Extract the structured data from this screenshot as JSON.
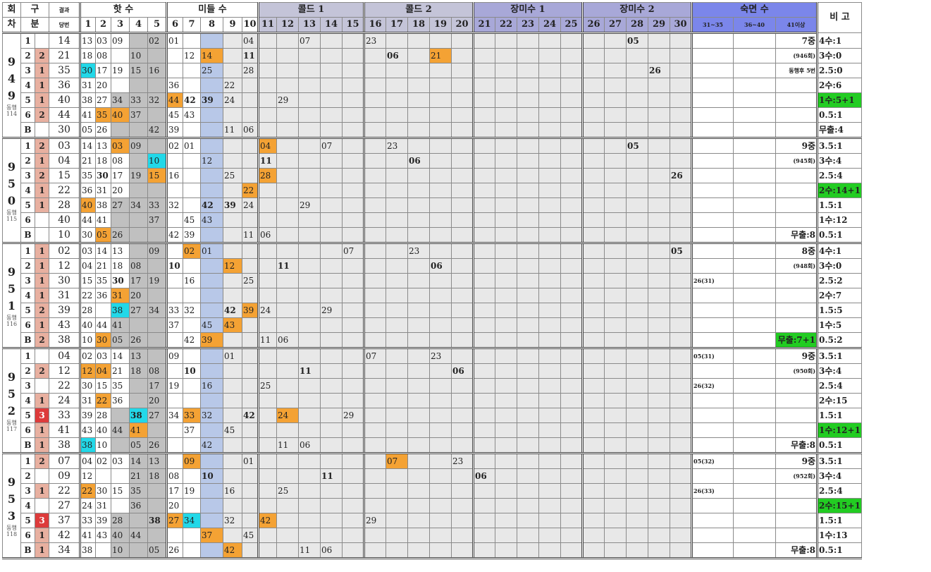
{
  "header": {
    "round": [
      "회",
      "차"
    ],
    "kind": [
      "구",
      "분"
    ],
    "result": [
      "결과",
      "당번"
    ],
    "groups": [
      {
        "label": "핫 수",
        "span": 5,
        "cls": ""
      },
      {
        "label": "미들 수",
        "span": 5,
        "cls": ""
      },
      {
        "label": "콜드 1",
        "span": 5,
        "cls": "cold"
      },
      {
        "label": "콜드 2",
        "span": 5,
        "cls": "cold"
      },
      {
        "label": "장미수 1",
        "span": 5,
        "cls": "rose"
      },
      {
        "label": "장미수 2",
        "span": 5,
        "cls": "rose"
      },
      {
        "label": "숙면 수",
        "span": 3,
        "cls": "sleep"
      }
    ],
    "cols": [
      "1",
      "2",
      "3",
      "4",
      "5",
      "6",
      "7",
      "8",
      "9",
      "10",
      "11",
      "12",
      "13",
      "14",
      "15",
      "16",
      "17",
      "18",
      "19",
      "20",
      "21",
      "22",
      "23",
      "24",
      "25",
      "26",
      "27",
      "28",
      "29",
      "30",
      "31~35",
      "36~40",
      "41이상"
    ],
    "remark": "비 고"
  },
  "blocks": [
    {
      "round": "9 4 9",
      "note": [
        "동행",
        "114"
      ],
      "rows": [
        {
          "idx": "1",
          "g": "",
          "res": "14",
          "cells": {
            "1": "13",
            "2": "03",
            "3": "09",
            "5": "02",
            "6": "01",
            "10": "04",
            "13": "07",
            "16": "23",
            "28": "05"
          },
          "s33": "7중",
          "rem": "4수:1"
        },
        {
          "idx": "2",
          "g": "2",
          "res": "21",
          "cells": {
            "1": "18",
            "2": "08",
            "4": "10",
            "7": "12",
            "8": "14",
            "10": "11",
            "17": "06",
            "19": "21"
          },
          "s33": "(946회)",
          "rem": "3수:0"
        },
        {
          "idx": "3",
          "g": "1",
          "res": "35",
          "cells": {
            "1": "30",
            "2": "17",
            "3": "19",
            "4": "15",
            "5": "16",
            "8": "25",
            "10": "28",
            "29": "26"
          },
          "s33": "동행후 5번",
          "rem": "2.5:0"
        },
        {
          "idx": "4",
          "g": "1",
          "res": "36",
          "cells": {
            "1": "31",
            "2": "20",
            "6": "36",
            "9": "22"
          },
          "rem": "2수:6"
        },
        {
          "idx": "5",
          "g": "1",
          "res": "40",
          "cells": {
            "1": "38",
            "2": "27",
            "3": "34",
            "4": "33",
            "5": "32",
            "6": "44",
            "7": "42",
            "8": "39",
            "9": "24",
            "12": "29"
          },
          "rem": "1수:5+1"
        },
        {
          "idx": "6",
          "g": "2",
          "res": "44",
          "cells": {
            "1": "41",
            "2": "35",
            "3": "40",
            "4": "37",
            "6": "45",
            "7": "43"
          },
          "rem": "0.5:1"
        },
        {
          "idx": "B",
          "g": "",
          "res": "30",
          "cells": {
            "1": "05",
            "2": "26",
            "5": "42",
            "6": "39",
            "9": "11",
            "10": "06"
          },
          "rem": "무출:4"
        }
      ]
    },
    {
      "round": "9 5 0",
      "note": [
        "동행",
        "115"
      ],
      "rows": [
        {
          "idx": "1",
          "g": "2",
          "res": "03",
          "cells": {
            "1": "14",
            "2": "13",
            "3": "03",
            "4": "09",
            "6": "02",
            "7": "01",
            "11": "04",
            "14": "07",
            "17": "23",
            "28": "05"
          },
          "s33": "9중",
          "rem": "3.5:1"
        },
        {
          "idx": "2",
          "g": "1",
          "res": "04",
          "cells": {
            "1": "21",
            "2": "18",
            "3": "08",
            "5": "10",
            "8": "12",
            "11": "11",
            "18": "06"
          },
          "s33": "(945회)",
          "rem": "3수:4"
        },
        {
          "idx": "3",
          "g": "2",
          "res": "15",
          "cells": {
            "1": "35",
            "2": "30",
            "3": "17",
            "4": "19",
            "5": "15",
            "6": "16",
            "9": "25",
            "11": "28",
            "30": "26"
          },
          "rem": "2.5:4"
        },
        {
          "idx": "4",
          "g": "1",
          "res": "22",
          "cells": {
            "1": "36",
            "2": "31",
            "3": "20",
            "10": "22"
          },
          "rem": "2수:14+1"
        },
        {
          "idx": "5",
          "g": "1",
          "res": "28",
          "cells": {
            "1": "40",
            "2": "38",
            "3": "27",
            "4": "34",
            "5": "33",
            "6": "32",
            "8": "42",
            "9": "39",
            "10": "24",
            "13": "29"
          },
          "rem": "1.5:1"
        },
        {
          "idx": "6",
          "g": "",
          "res": "40",
          "cells": {
            "1": "44",
            "2": "41",
            "5": "37",
            "7": "45",
            "8": "43"
          },
          "rem": "1수:12"
        },
        {
          "idx": "B",
          "g": "",
          "res": "10",
          "cells": {
            "1": "30",
            "2": "05",
            "3": "26",
            "6": "42",
            "7": "39",
            "10": "11",
            "11": "06"
          },
          "s33": "무출:8",
          "rem": "0.5:1"
        }
      ]
    },
    {
      "round": "9 5 1",
      "note": [
        "동행",
        "116"
      ],
      "rows": [
        {
          "idx": "1",
          "g": "1",
          "res": "02",
          "cells": {
            "1": "03",
            "2": "14",
            "3": "13",
            "5": "09",
            "7": "02",
            "8": "01",
            "15": "07",
            "18": "23",
            "30": "05"
          },
          "s33": "8중",
          "rem": "4수:1"
        },
        {
          "idx": "2",
          "g": "1",
          "res": "12",
          "cells": {
            "1": "04",
            "2": "21",
            "3": "18",
            "4": "08",
            "6": "10",
            "9": "12",
            "12": "11",
            "19": "06"
          },
          "s33": "(948회)",
          "rem": "3수:0"
        },
        {
          "idx": "3",
          "g": "1",
          "res": "30",
          "cells": {
            "1": "15",
            "2": "35",
            "3": "30",
            "4": "17",
            "5": "19",
            "7": "16",
            "10": "25"
          },
          "s31": "26(31)",
          "rem": "2.5:2"
        },
        {
          "idx": "4",
          "g": "1",
          "res": "31",
          "cells": {
            "1": "22",
            "2": "36",
            "3": "31",
            "4": "20"
          },
          "rem": "2수:7"
        },
        {
          "idx": "5",
          "g": "2",
          "res": "39",
          "cells": {
            "1": "28",
            "3": "38",
            "4": "27",
            "5": "34",
            "6": "33",
            "7": "32",
            "9": "42",
            "10": "39",
            "11": "24",
            "14": "29"
          },
          "rem": "1.5:5"
        },
        {
          "idx": "6",
          "g": "1",
          "res": "43",
          "cells": {
            "1": "40",
            "2": "44",
            "3": "41",
            "6": "37",
            "8": "45",
            "9": "43"
          },
          "rem": "1수:5"
        },
        {
          "idx": "B",
          "g": "2",
          "res": "38",
          "cells": {
            "1": "10",
            "2": "30",
            "3": "05",
            "4": "26",
            "7": "42",
            "8": "39",
            "11": "11",
            "12": "06"
          },
          "s33": "무출:7+1",
          "rem": "0.5:2"
        }
      ]
    },
    {
      "round": "9 5 2",
      "note": [
        "동행",
        "117"
      ],
      "rows": [
        {
          "idx": "1",
          "g": "",
          "res": "04",
          "cells": {
            "1": "02",
            "2": "03",
            "3": "14",
            "4": "13",
            "6": "09",
            "9": "01",
            "16": "07",
            "19": "23"
          },
          "s31": "05(31)",
          "s33": "9중",
          "rem": "3.5:1"
        },
        {
          "idx": "2",
          "g": "2",
          "res": "12",
          "cells": {
            "1": "12",
            "2": "04",
            "3": "21",
            "4": "18",
            "5": "08",
            "7": "10",
            "13": "11",
            "20": "06"
          },
          "s33": "(950회)",
          "rem": "3수:4"
        },
        {
          "idx": "3",
          "g": "",
          "res": "22",
          "cells": {
            "1": "30",
            "2": "15",
            "3": "35",
            "5": "17",
            "6": "19",
            "8": "16",
            "11": "25"
          },
          "s31": "26(32)",
          "rem": "2.5:4"
        },
        {
          "idx": "4",
          "g": "1",
          "res": "24",
          "cells": {
            "1": "31",
            "2": "22",
            "3": "36",
            "5": "20"
          },
          "rem": "2수:15"
        },
        {
          "idx": "5",
          "g": "3",
          "res": "33",
          "cells": {
            "1": "39",
            "2": "28",
            "4": "38",
            "5": "27",
            "6": "34",
            "7": "33",
            "8": "32",
            "10": "42",
            "12": "24",
            "15": "29"
          },
          "rem": "1.5:1"
        },
        {
          "idx": "6",
          "g": "1",
          "res": "41",
          "cells": {
            "1": "43",
            "2": "40",
            "3": "44",
            "4": "41",
            "7": "37",
            "9": "45"
          },
          "rem": "1수:12+1"
        },
        {
          "idx": "B",
          "g": "1",
          "res": "38",
          "cells": {
            "1": "38",
            "2": "10",
            "4": "05",
            "5": "26",
            "8": "42",
            "12": "11",
            "13": "06"
          },
          "s33": "무출:8",
          "rem": "0.5:1"
        }
      ]
    },
    {
      "round": "9 5 3",
      "note": [
        "동행",
        "118"
      ],
      "rows": [
        {
          "idx": "1",
          "g": "2",
          "res": "07",
          "cells": {
            "1": "04",
            "2": "02",
            "3": "03",
            "4": "14",
            "5": "13",
            "7": "09",
            "10": "01",
            "17": "07",
            "20": "23"
          },
          "s31": "05(32)",
          "s33": "9중",
          "rem": "3.5:1"
        },
        {
          "idx": "2",
          "g": "",
          "res": "09",
          "cells": {
            "1": "12",
            "4": "21",
            "5": "18",
            "6": "08",
            "8": "10",
            "14": "11",
            "21": "06"
          },
          "s33": "(952회)",
          "rem": "3수:4"
        },
        {
          "idx": "3",
          "g": "1",
          "res": "22",
          "cells": {
            "1": "22",
            "2": "30",
            "3": "15",
            "4": "35",
            "6": "17",
            "7": "19",
            "9": "16",
            "12": "25"
          },
          "s31": "26(33)",
          "rem": "2.5:4"
        },
        {
          "idx": "4",
          "g": "",
          "res": "27",
          "cells": {
            "1": "24",
            "2": "31",
            "4": "36",
            "6": "20"
          },
          "rem": "2수:15+1"
        },
        {
          "idx": "5",
          "g": "3",
          "res": "37",
          "cells": {
            "1": "33",
            "2": "39",
            "3": "28",
            "5": "38",
            "6": "27",
            "7": "34",
            "9": "32",
            "11": "42",
            "16": "29"
          },
          "rem": "1.5:1"
        },
        {
          "idx": "6",
          "g": "1",
          "res": "42",
          "cells": {
            "1": "41",
            "2": "43",
            "3": "40",
            "4": "44",
            "8": "37",
            "10": "45"
          },
          "rem": "1수:13"
        },
        {
          "idx": "B",
          "g": "1",
          "res": "34",
          "cells": {
            "1": "38",
            "3": "10",
            "5": "05",
            "6": "26",
            "9": "42",
            "13": "11",
            "14": "06"
          },
          "s33": "무출:8",
          "rem": "0.5:1"
        }
      ]
    }
  ]
}
